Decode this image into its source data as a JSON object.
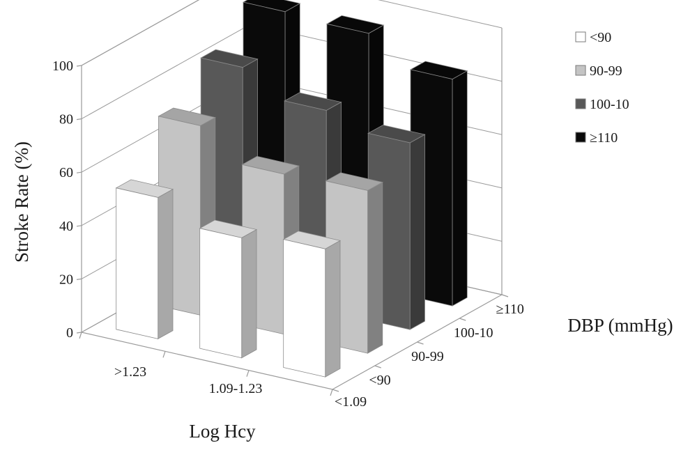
{
  "chart_data": {
    "type": "bar",
    "subtype": "3d-column",
    "title": "",
    "xlabel": "Log Hcy",
    "ylabel": "Stroke Rate (%)",
    "zlabel": "DBP (mmHg)",
    "ylim": [
      0,
      100
    ],
    "yticks": [
      "0",
      "20",
      "40",
      "60",
      "80",
      "100"
    ],
    "categories": [
      ">1.23",
      "1.09-1.23",
      "<1.09"
    ],
    "depth_categories": [
      "<90",
      "90-99",
      "100-10",
      "≥110"
    ],
    "grid": true,
    "legend_position": "top-right",
    "series": [
      {
        "name": "<90",
        "color": "#ffffff",
        "values": [
          53,
          45,
          48
        ]
      },
      {
        "name": "90-99",
        "color": "#c4c4c4",
        "values": [
          71,
          60,
          61
        ]
      },
      {
        "name": "100-10",
        "color": "#585858",
        "values": [
          84,
          75,
          70
        ]
      },
      {
        "name": "≥110",
        "color": "#0a0a0a",
        "values": [
          96,
          95,
          85
        ]
      }
    ]
  }
}
